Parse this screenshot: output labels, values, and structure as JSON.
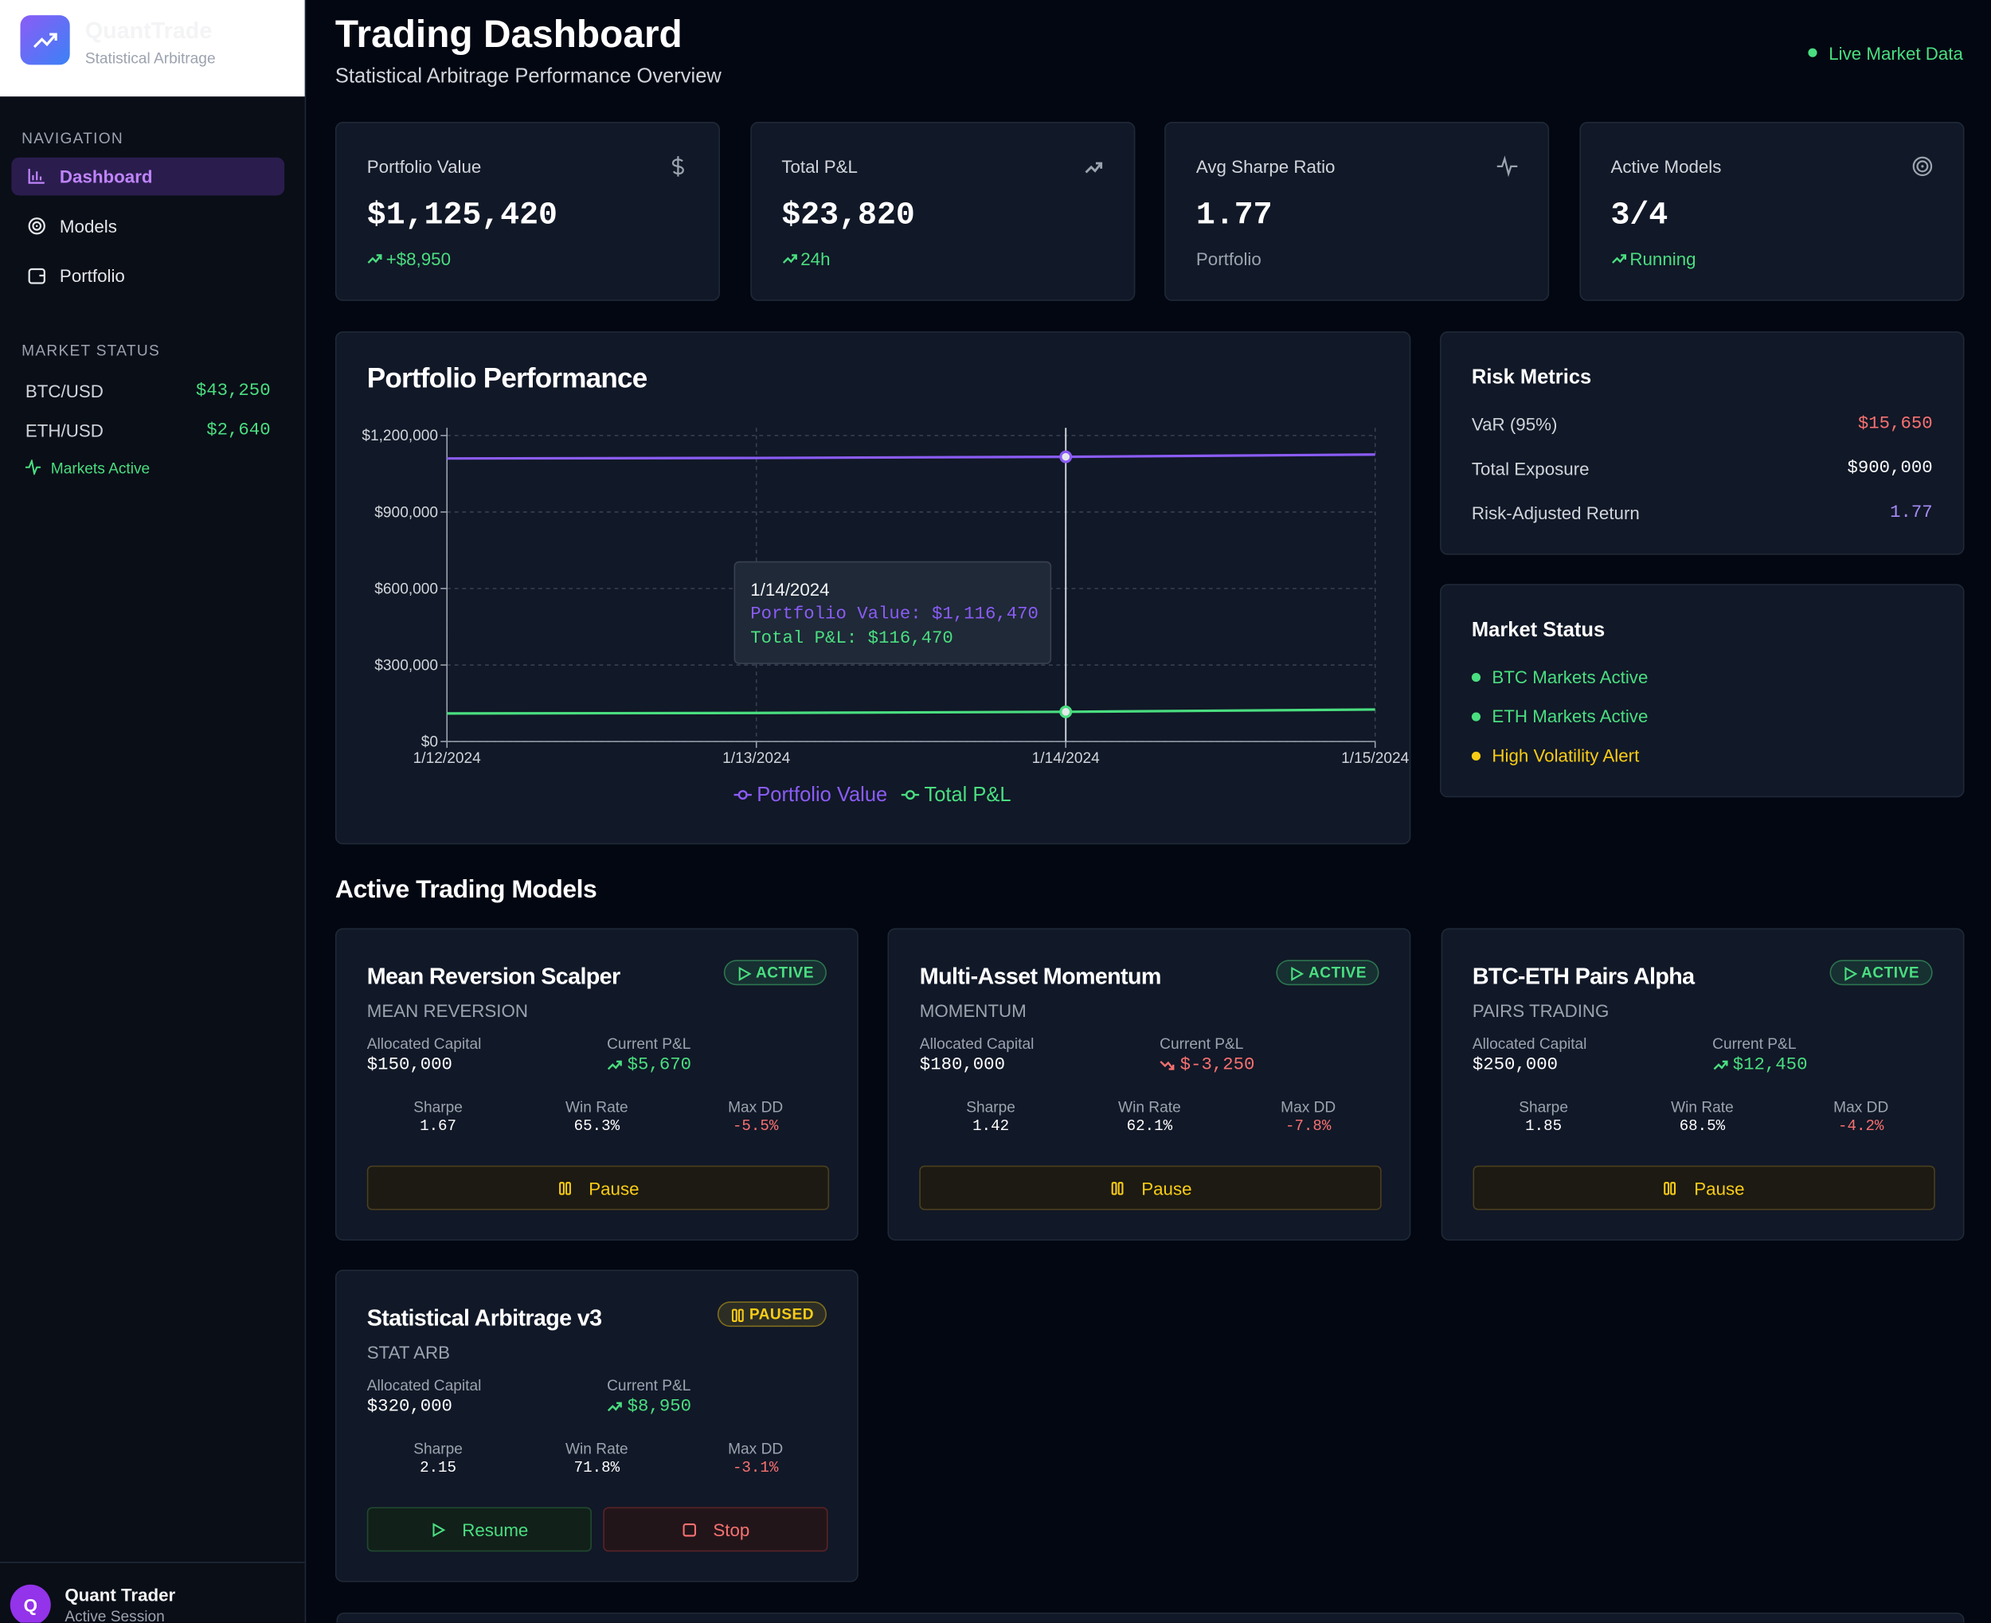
{
  "sidebar": {
    "brand": {
      "name": "QuantTrade",
      "subtitle": "Statistical Arbitrage"
    },
    "nav_heading": "NAVIGATION",
    "nav": [
      "Dashboard",
      "Models",
      "Portfolio"
    ],
    "market_heading": "MARKET STATUS",
    "markets": [
      {
        "pair": "BTC/USD",
        "price": "$43,250"
      },
      {
        "pair": "ETH/USD",
        "price": "$2,640"
      }
    ],
    "markets_status": "Markets Active",
    "user": {
      "initial": "Q",
      "name": "Quant Trader",
      "status": "Active Session"
    }
  },
  "header": {
    "title": "Trading Dashboard",
    "subtitle": "Statistical Arbitrage Performance Overview",
    "live": "Live Market Data"
  },
  "stats": [
    {
      "label": "Portfolio Value",
      "value": "$1,125,420",
      "note": "+$8,950",
      "note_color": "#4ade80"
    },
    {
      "label": "Total P&L",
      "value": "$23,820",
      "note": "24h",
      "note_color": "#4ade80"
    },
    {
      "label": "Avg Sharpe Ratio",
      "value": "1.77",
      "note": "Portfolio",
      "note_color": "#9ca3af"
    },
    {
      "label": "Active Models",
      "value": "3/4",
      "note": "Running",
      "note_color": "#4ade80"
    }
  ],
  "performance": {
    "title": "Portfolio Performance",
    "chart_data": {
      "type": "line",
      "x": [
        "1/12/2024",
        "1/13/2024",
        "1/14/2024",
        "1/15/2024"
      ],
      "series": [
        {
          "name": "Portfolio Value",
          "color": "#8b5cf6",
          "values": [
            1110000,
            1112000,
            1116470,
            1125420
          ]
        },
        {
          "name": "Total P&L",
          "color": "#4ade80",
          "values": [
            110000,
            112000,
            116470,
            125420
          ]
        }
      ],
      "ylim": [
        0,
        1200000
      ],
      "yticks": [
        {
          "value": 0,
          "label": "$0"
        },
        {
          "value": 300000,
          "label": "$300,000"
        },
        {
          "value": 600000,
          "label": "$600,000"
        },
        {
          "value": 900000,
          "label": "$900,000"
        },
        {
          "value": 1200000,
          "label": "$1,200,000"
        }
      ],
      "grid": true,
      "tooltip": {
        "date": "1/14/2024",
        "lines": [
          "Portfolio Value: $1,116,470",
          "Total P&L: $116,470"
        ]
      }
    }
  },
  "risk": {
    "title": "Risk Metrics",
    "rows": [
      {
        "label": "VaR (95%)",
        "value": "$15,650",
        "color": "#f87171"
      },
      {
        "label": "Total Exposure",
        "value": "$900,000",
        "color": "#f9fafb"
      },
      {
        "label": "Risk-Adjusted Return",
        "value": "1.77",
        "color": "#a78bfa"
      }
    ]
  },
  "market_status": {
    "title": "Market Status",
    "items": [
      {
        "label": "BTC Markets Active",
        "color": "#4ade80"
      },
      {
        "label": "ETH Markets Active",
        "color": "#4ade80"
      },
      {
        "label": "High Volatility Alert",
        "color": "#facc15"
      }
    ]
  },
  "models_heading": "Active Trading Models",
  "models": [
    {
      "name": "Mean Reversion Scalper",
      "status": "ACTIVE",
      "badge_color": "#4ade80",
      "type": "MEAN REVERSION",
      "capital_label": "Allocated Capital",
      "capital": "$150,000",
      "pnl_label": "Current P&L",
      "pnl": "$5,670",
      "trend": "up",
      "metrics": [
        {
          "label": "Sharpe",
          "value": "1.67"
        },
        {
          "label": "Win Rate",
          "value": "65.3%"
        },
        {
          "label": "Max DD",
          "value": "-5.5%"
        }
      ],
      "actions": [
        "Pause"
      ]
    },
    {
      "name": "Multi-Asset Momentum",
      "status": "ACTIVE",
      "badge_color": "#4ade80",
      "type": "MOMENTUM",
      "capital_label": "Allocated Capital",
      "capital": "$180,000",
      "pnl_label": "Current P&L",
      "pnl": "$-3,250",
      "trend": "down",
      "metrics": [
        {
          "label": "Sharpe",
          "value": "1.42"
        },
        {
          "label": "Win Rate",
          "value": "62.1%"
        },
        {
          "label": "Max DD",
          "value": "-7.8%"
        }
      ],
      "actions": [
        "Pause"
      ]
    },
    {
      "name": "BTC-ETH Pairs Alpha",
      "status": "ACTIVE",
      "badge_color": "#4ade80",
      "type": "PAIRS TRADING",
      "capital_label": "Allocated Capital",
      "capital": "$250,000",
      "pnl_label": "Current P&L",
      "pnl": "$12,450",
      "trend": "up",
      "metrics": [
        {
          "label": "Sharpe",
          "value": "1.85"
        },
        {
          "label": "Win Rate",
          "value": "68.5%"
        },
        {
          "label": "Max DD",
          "value": "-4.2%"
        }
      ],
      "actions": [
        "Pause"
      ]
    },
    {
      "name": "Statistical Arbitrage v3",
      "status": "PAUSED",
      "badge_color": "#facc15",
      "type": "STAT ARB",
      "capital_label": "Allocated Capital",
      "capital": "$320,000",
      "pnl_label": "Current P&L",
      "pnl": "$8,950",
      "trend": "up",
      "metrics": [
        {
          "label": "Sharpe",
          "value": "2.15"
        },
        {
          "label": "Win Rate",
          "value": "71.8%"
        },
        {
          "label": "Max DD",
          "value": "-3.1%"
        }
      ],
      "actions": [
        "Resume",
        "Stop"
      ]
    }
  ]
}
